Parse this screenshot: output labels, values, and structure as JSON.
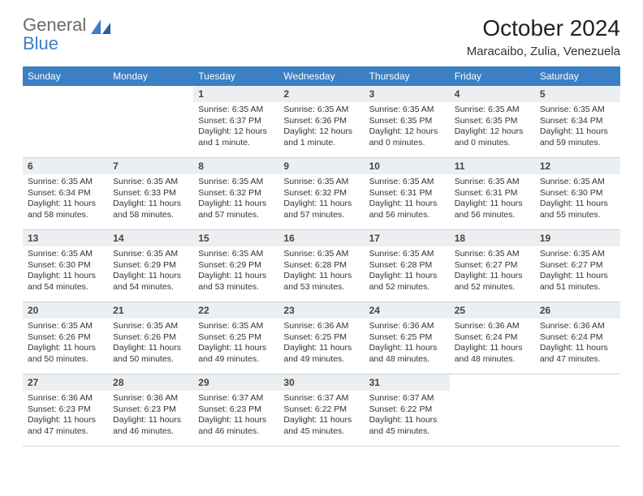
{
  "brand": {
    "part1": "General",
    "part2": "Blue"
  },
  "title": "October 2024",
  "location": "Maracaibo, Zulia, Venezuela",
  "weekdays": [
    "Sunday",
    "Monday",
    "Tuesday",
    "Wednesday",
    "Thursday",
    "Friday",
    "Saturday"
  ],
  "colors": {
    "header_bg": "#3b7fc4",
    "header_text": "#ffffff",
    "daynum_bg": "#eceff2",
    "border": "#d0d6dc",
    "logo_gray": "#6a6a6a",
    "logo_blue": "#3b7fc4"
  },
  "weeks": [
    [
      {
        "n": "",
        "lines": []
      },
      {
        "n": "",
        "lines": []
      },
      {
        "n": "1",
        "lines": [
          "Sunrise: 6:35 AM",
          "Sunset: 6:37 PM",
          "Daylight: 12 hours and 1 minute."
        ]
      },
      {
        "n": "2",
        "lines": [
          "Sunrise: 6:35 AM",
          "Sunset: 6:36 PM",
          "Daylight: 12 hours and 1 minute."
        ]
      },
      {
        "n": "3",
        "lines": [
          "Sunrise: 6:35 AM",
          "Sunset: 6:35 PM",
          "Daylight: 12 hours and 0 minutes."
        ]
      },
      {
        "n": "4",
        "lines": [
          "Sunrise: 6:35 AM",
          "Sunset: 6:35 PM",
          "Daylight: 12 hours and 0 minutes."
        ]
      },
      {
        "n": "5",
        "lines": [
          "Sunrise: 6:35 AM",
          "Sunset: 6:34 PM",
          "Daylight: 11 hours and 59 minutes."
        ]
      }
    ],
    [
      {
        "n": "6",
        "lines": [
          "Sunrise: 6:35 AM",
          "Sunset: 6:34 PM",
          "Daylight: 11 hours and 58 minutes."
        ]
      },
      {
        "n": "7",
        "lines": [
          "Sunrise: 6:35 AM",
          "Sunset: 6:33 PM",
          "Daylight: 11 hours and 58 minutes."
        ]
      },
      {
        "n": "8",
        "lines": [
          "Sunrise: 6:35 AM",
          "Sunset: 6:32 PM",
          "Daylight: 11 hours and 57 minutes."
        ]
      },
      {
        "n": "9",
        "lines": [
          "Sunrise: 6:35 AM",
          "Sunset: 6:32 PM",
          "Daylight: 11 hours and 57 minutes."
        ]
      },
      {
        "n": "10",
        "lines": [
          "Sunrise: 6:35 AM",
          "Sunset: 6:31 PM",
          "Daylight: 11 hours and 56 minutes."
        ]
      },
      {
        "n": "11",
        "lines": [
          "Sunrise: 6:35 AM",
          "Sunset: 6:31 PM",
          "Daylight: 11 hours and 56 minutes."
        ]
      },
      {
        "n": "12",
        "lines": [
          "Sunrise: 6:35 AM",
          "Sunset: 6:30 PM",
          "Daylight: 11 hours and 55 minutes."
        ]
      }
    ],
    [
      {
        "n": "13",
        "lines": [
          "Sunrise: 6:35 AM",
          "Sunset: 6:30 PM",
          "Daylight: 11 hours and 54 minutes."
        ]
      },
      {
        "n": "14",
        "lines": [
          "Sunrise: 6:35 AM",
          "Sunset: 6:29 PM",
          "Daylight: 11 hours and 54 minutes."
        ]
      },
      {
        "n": "15",
        "lines": [
          "Sunrise: 6:35 AM",
          "Sunset: 6:29 PM",
          "Daylight: 11 hours and 53 minutes."
        ]
      },
      {
        "n": "16",
        "lines": [
          "Sunrise: 6:35 AM",
          "Sunset: 6:28 PM",
          "Daylight: 11 hours and 53 minutes."
        ]
      },
      {
        "n": "17",
        "lines": [
          "Sunrise: 6:35 AM",
          "Sunset: 6:28 PM",
          "Daylight: 11 hours and 52 minutes."
        ]
      },
      {
        "n": "18",
        "lines": [
          "Sunrise: 6:35 AM",
          "Sunset: 6:27 PM",
          "Daylight: 11 hours and 52 minutes."
        ]
      },
      {
        "n": "19",
        "lines": [
          "Sunrise: 6:35 AM",
          "Sunset: 6:27 PM",
          "Daylight: 11 hours and 51 minutes."
        ]
      }
    ],
    [
      {
        "n": "20",
        "lines": [
          "Sunrise: 6:35 AM",
          "Sunset: 6:26 PM",
          "Daylight: 11 hours and 50 minutes."
        ]
      },
      {
        "n": "21",
        "lines": [
          "Sunrise: 6:35 AM",
          "Sunset: 6:26 PM",
          "Daylight: 11 hours and 50 minutes."
        ]
      },
      {
        "n": "22",
        "lines": [
          "Sunrise: 6:35 AM",
          "Sunset: 6:25 PM",
          "Daylight: 11 hours and 49 minutes."
        ]
      },
      {
        "n": "23",
        "lines": [
          "Sunrise: 6:36 AM",
          "Sunset: 6:25 PM",
          "Daylight: 11 hours and 49 minutes."
        ]
      },
      {
        "n": "24",
        "lines": [
          "Sunrise: 6:36 AM",
          "Sunset: 6:25 PM",
          "Daylight: 11 hours and 48 minutes."
        ]
      },
      {
        "n": "25",
        "lines": [
          "Sunrise: 6:36 AM",
          "Sunset: 6:24 PM",
          "Daylight: 11 hours and 48 minutes."
        ]
      },
      {
        "n": "26",
        "lines": [
          "Sunrise: 6:36 AM",
          "Sunset: 6:24 PM",
          "Daylight: 11 hours and 47 minutes."
        ]
      }
    ],
    [
      {
        "n": "27",
        "lines": [
          "Sunrise: 6:36 AM",
          "Sunset: 6:23 PM",
          "Daylight: 11 hours and 47 minutes."
        ]
      },
      {
        "n": "28",
        "lines": [
          "Sunrise: 6:36 AM",
          "Sunset: 6:23 PM",
          "Daylight: 11 hours and 46 minutes."
        ]
      },
      {
        "n": "29",
        "lines": [
          "Sunrise: 6:37 AM",
          "Sunset: 6:23 PM",
          "Daylight: 11 hours and 46 minutes."
        ]
      },
      {
        "n": "30",
        "lines": [
          "Sunrise: 6:37 AM",
          "Sunset: 6:22 PM",
          "Daylight: 11 hours and 45 minutes."
        ]
      },
      {
        "n": "31",
        "lines": [
          "Sunrise: 6:37 AM",
          "Sunset: 6:22 PM",
          "Daylight: 11 hours and 45 minutes."
        ]
      },
      {
        "n": "",
        "lines": []
      },
      {
        "n": "",
        "lines": []
      }
    ]
  ]
}
